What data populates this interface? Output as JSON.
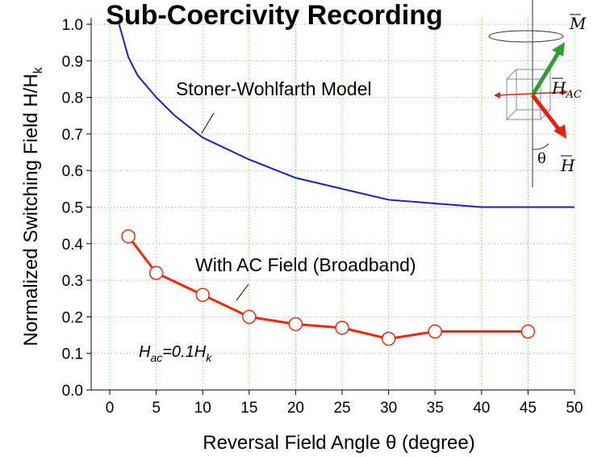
{
  "chart_data": {
    "type": "line",
    "title": "Sub-Coercivity Recording",
    "x_label": "Reversal Field Angle θ (degree)",
    "y_label": [
      "Normalized Switching Field  H/H",
      "k"
    ],
    "xlim": [
      -2,
      50
    ],
    "ylim": [
      0,
      1.0
    ],
    "xticks": [
      0,
      5,
      10,
      15,
      20,
      25,
      30,
      35,
      40,
      45,
      50
    ],
    "yticks": [
      {
        "value": 0,
        "label": "0.0"
      },
      0.1,
      0.2,
      0.3,
      0.4,
      0.5,
      0.6,
      0.7,
      0.8,
      0.9,
      {
        "value": 1,
        "label": "1.0"
      }
    ],
    "grid": true,
    "series": [
      {
        "name": "Stoner-Wohlfarth Model",
        "color": "#1a1adb",
        "markers": false,
        "x": [
          1,
          2,
          3,
          5,
          7,
          10,
          15,
          20,
          25,
          30,
          35,
          40,
          45,
          50
        ],
        "values": [
          1.0,
          0.91,
          0.86,
          0.8,
          0.75,
          0.69,
          0.63,
          0.58,
          0.55,
          0.52,
          0.51,
          0.5,
          0.5,
          0.5
        ]
      },
      {
        "name": "With AC Field (Broadband)",
        "color": "#f0280a",
        "markers": true,
        "x": [
          2,
          5,
          10,
          15,
          20,
          25,
          30,
          35,
          45
        ],
        "values": [
          0.42,
          0.32,
          0.26,
          0.2,
          0.18,
          0.17,
          0.14,
          0.16,
          0.16
        ]
      }
    ],
    "annotation": [
      "H",
      "ac",
      "=0.1H",
      "k"
    ],
    "inset": {
      "m": "M",
      "hac": [
        "H",
        "AC"
      ],
      "theta": "θ",
      "h": "H"
    }
  }
}
